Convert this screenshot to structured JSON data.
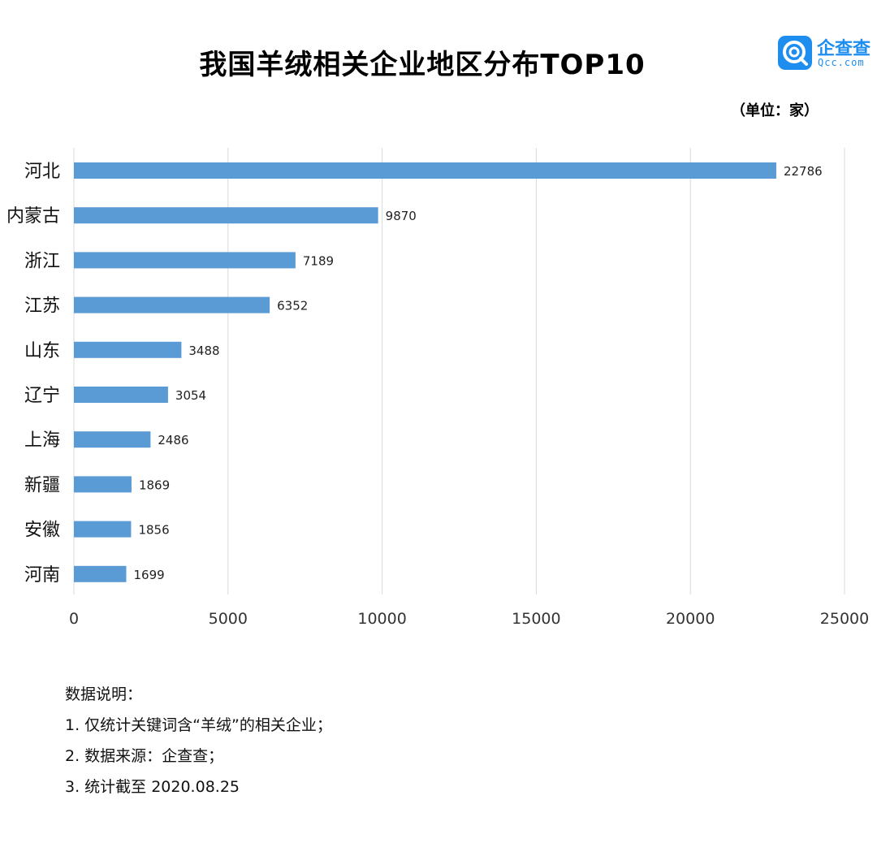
{
  "header": {
    "title": "我国羊绒相关企业地区分布TOP10",
    "unit": "（单位：家）"
  },
  "logo": {
    "name": "企查查",
    "domain": "Qcc.com",
    "color": "#1d8ef0",
    "icon": "qcc-magnifier-icon"
  },
  "colors": {
    "bar": "#5b9bd5",
    "grid": "#d9d9d9"
  },
  "chart_data": {
    "type": "bar",
    "orientation": "horizontal",
    "title": "我国羊绒相关企业地区分布TOP10",
    "categories": [
      "河北",
      "内蒙古",
      "浙江",
      "江苏",
      "山东",
      "辽宁",
      "上海",
      "新疆",
      "安徽",
      "河南"
    ],
    "values": [
      22786,
      9870,
      7189,
      6352,
      3488,
      3054,
      2486,
      1869,
      1856,
      1699
    ],
    "xlim": [
      0,
      25000
    ],
    "xticks": [
      0,
      5000,
      10000,
      15000,
      20000,
      25000
    ],
    "grid": true,
    "data_labels": true
  },
  "notes": {
    "heading": "数据说明：",
    "items": [
      "1. 仅统计关键词含“羊绒”的相关企业；",
      "2. 数据来源：企查查；",
      "3. 统计截至 2020.08.25"
    ]
  }
}
